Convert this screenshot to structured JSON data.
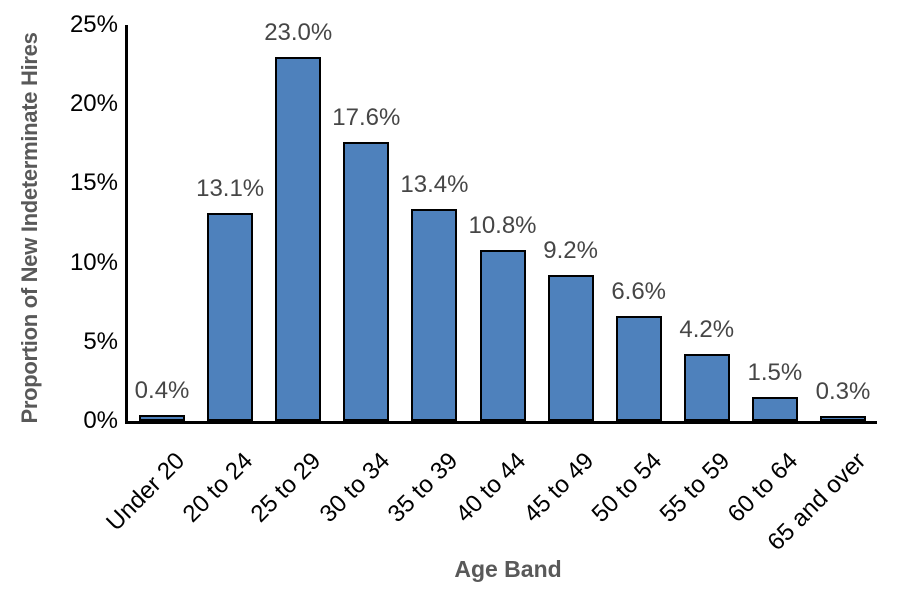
{
  "chart_data": {
    "type": "bar",
    "title": "",
    "xlabel": "Age Band",
    "ylabel": "Proportion of New Indeterminate Hires",
    "categories": [
      "Under 20",
      "20 to 24",
      "25 to 29",
      "30 to 34",
      "35 to 39",
      "40 to 44",
      "45 to 49",
      "50 to 54",
      "55 to 59",
      "60 to 64",
      "65 and over"
    ],
    "values": [
      0.4,
      13.1,
      23.0,
      17.6,
      13.4,
      10.8,
      9.2,
      6.6,
      4.2,
      1.5,
      0.3
    ],
    "data_labels": [
      "0.4%",
      "13.1%",
      "23.0%",
      "17.6%",
      "13.4%",
      "10.8%",
      "9.2%",
      "6.6%",
      "4.2%",
      "1.5%",
      "0.3%"
    ],
    "y_ticks": [
      "0%",
      "5%",
      "10%",
      "15%",
      "20%",
      "25%"
    ],
    "ylim": [
      0,
      25
    ],
    "grid": false,
    "legend": false,
    "colors": {
      "bar_fill": "#4E81BC",
      "bar_border": "#000000",
      "axis_line": "#000000",
      "tick_label": "#000000",
      "data_label": "#464646",
      "axis_title": "#595959",
      "background": "#FFFFFF"
    }
  }
}
